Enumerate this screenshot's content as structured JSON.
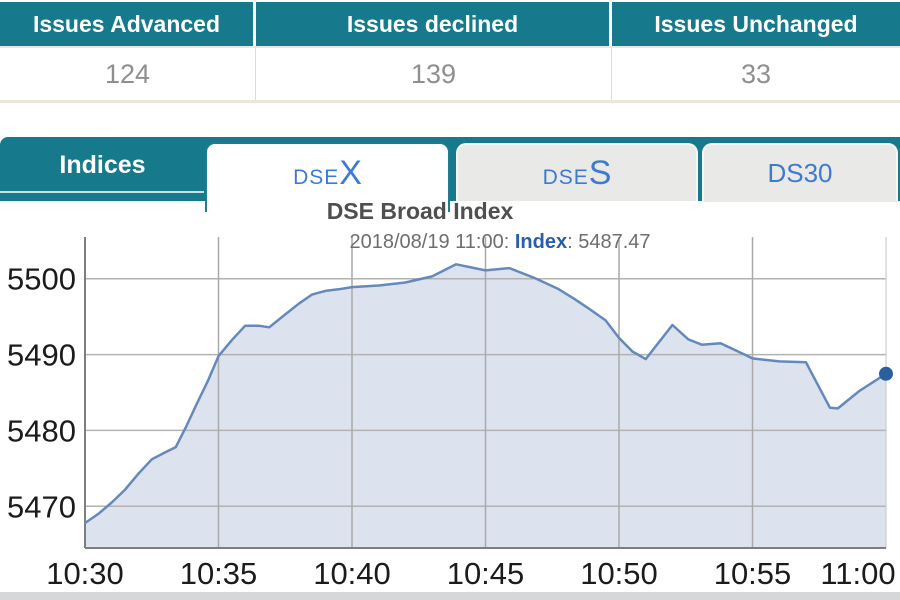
{
  "summary_table": {
    "columns": [
      {
        "header": "Issues Advanced",
        "value": "124"
      },
      {
        "header": "Issues declined",
        "value": "139"
      },
      {
        "header": "Issues Unchanged",
        "value": "33"
      }
    ]
  },
  "tabs": {
    "panel_label": "Indices",
    "items": [
      {
        "id": "dsex",
        "prefix": "DSE",
        "suffix": "X",
        "active": true
      },
      {
        "id": "dses",
        "prefix": "DSE",
        "suffix": "S",
        "active": false
      },
      {
        "id": "ds30",
        "prefix": "DS30",
        "suffix": "",
        "active": false
      }
    ]
  },
  "chart_data": {
    "type": "area",
    "title": "DSE Broad Index",
    "subtitle": {
      "datetime": "2018/08/19 11:00: ",
      "label": "Index",
      "value": ": 5487.47"
    },
    "x_ticks": [
      "10:30",
      "10:35",
      "10:40",
      "10:45",
      "10:50",
      "10:55",
      "11:00"
    ],
    "x_tick_step_minutes": 5,
    "x_range_minutes": [
      0,
      30
    ],
    "y_ticks": [
      5470,
      5480,
      5490,
      5500
    ],
    "y_range": [
      5464.5,
      5505.5
    ],
    "grid": true,
    "legend": "none",
    "last_point": {
      "time": "11:00",
      "value": 5487.47
    },
    "points": [
      [
        0,
        5467.8
      ],
      [
        0.5,
        5469.0
      ],
      [
        1,
        5470.5
      ],
      [
        1.5,
        5472.2
      ],
      [
        2,
        5474.3
      ],
      [
        2.5,
        5476.2
      ],
      [
        3,
        5477.1
      ],
      [
        3.4,
        5477.8
      ],
      [
        3.8,
        5480.6
      ],
      [
        4.2,
        5483.6
      ],
      [
        4.6,
        5486.5
      ],
      [
        5,
        5489.8
      ],
      [
        5.5,
        5491.9
      ],
      [
        6,
        5493.8
      ],
      [
        6.5,
        5493.8
      ],
      [
        6.9,
        5493.6
      ],
      [
        7.5,
        5495.3
      ],
      [
        8,
        5496.7
      ],
      [
        8.5,
        5497.9
      ],
      [
        9,
        5498.4
      ],
      [
        9.5,
        5498.6
      ],
      [
        10,
        5498.9
      ],
      [
        11,
        5499.1
      ],
      [
        12,
        5499.5
      ],
      [
        13,
        5500.3
      ],
      [
        13.9,
        5501.9
      ],
      [
        15,
        5501.1
      ],
      [
        15.9,
        5501.4
      ],
      [
        16.9,
        5500.0
      ],
      [
        17.7,
        5498.7
      ],
      [
        18.3,
        5497.4
      ],
      [
        18.9,
        5496.0
      ],
      [
        19.5,
        5494.5
      ],
      [
        20,
        5492.2
      ],
      [
        20.5,
        5490.4
      ],
      [
        21,
        5489.4
      ],
      [
        22,
        5493.9
      ],
      [
        22.6,
        5492.0
      ],
      [
        23.1,
        5491.3
      ],
      [
        23.8,
        5491.5
      ],
      [
        24.4,
        5490.5
      ],
      [
        25,
        5489.5
      ],
      [
        26,
        5489.1
      ],
      [
        27,
        5489.0
      ],
      [
        27.9,
        5483.0
      ],
      [
        28.2,
        5482.9
      ],
      [
        29,
        5485.2
      ],
      [
        30,
        5487.47
      ]
    ],
    "colors": {
      "line": "#6589ba",
      "fill": "#dce3ef",
      "marker": "#2a609f"
    }
  },
  "colors": {
    "teal": "#17798c",
    "tab_text_blue": "#3d7bd0",
    "header_text": "#ffffff",
    "value_text": "#8f8f8f",
    "title_text": "#4f4f4f",
    "subtitle_text": "#6e6e6e",
    "subtitle_accent": "#2a5fa8",
    "cream_border": "#ece7d8"
  }
}
